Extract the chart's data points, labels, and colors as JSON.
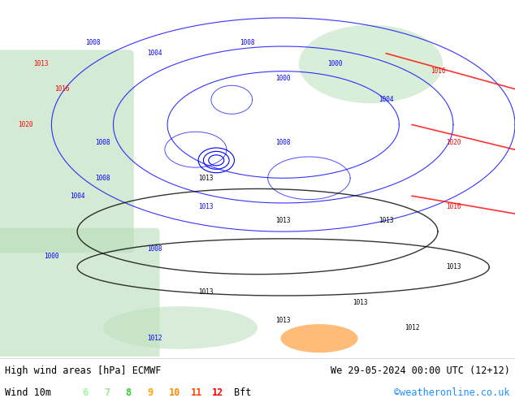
{
  "title_left": "High wind areas [hPa] ECMWF",
  "title_right": "We 29-05-2024 00:00 UTC (12+12)",
  "legend_label": "Wind 10m",
  "legend_values": [
    "6",
    "7",
    "8",
    "9",
    "10",
    "11",
    "12"
  ],
  "legend_unit": "Bft",
  "legend_colors": [
    "#98fb98",
    "#90ee90",
    "#32cd32",
    "#ffa500",
    "#ff8c00",
    "#ff4500",
    "#ff0000"
  ],
  "copyright": "©weatheronline.co.uk",
  "copyright_color": "#1e90ff",
  "bg_color": "#f0f0f0",
  "map_bg": "#e8f4e8",
  "fig_width": 6.34,
  "fig_height": 4.9,
  "dpi": 100,
  "bottom_bar_height": 0.105,
  "title_fontsize": 9.5,
  "legend_fontsize": 9.5,
  "map_image_placeholder": true
}
